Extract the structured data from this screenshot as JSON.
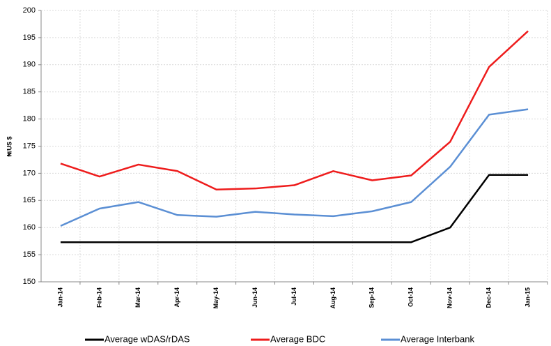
{
  "chart_data": {
    "type": "line",
    "y_label": "₦/US $",
    "categories": [
      "Jan-14",
      "Feb-14",
      "Mar-14",
      "Apr-14",
      "May-14",
      "Jun-14",
      "Jul-14",
      "Aug-14",
      "Sep-14",
      "Oct-14",
      "Nov-14",
      "Dec-14",
      "Jan-15"
    ],
    "series": [
      {
        "name": "Average wDAS/rDAS",
        "color": "#000000",
        "values": [
          157.3,
          157.3,
          157.3,
          157.3,
          157.3,
          157.3,
          157.3,
          157.3,
          157.3,
          157.3,
          160.0,
          169.7,
          169.7
        ]
      },
      {
        "name": "Average BDC",
        "color": "#ee1c1c",
        "values": [
          171.8,
          169.4,
          171.6,
          170.4,
          167.0,
          167.2,
          167.8,
          170.4,
          168.7,
          169.6,
          175.8,
          189.6,
          196.2
        ]
      },
      {
        "name": "Average Interbank",
        "color": "#5b8fd4",
        "values": [
          160.3,
          163.5,
          164.7,
          162.3,
          162.0,
          162.9,
          162.4,
          162.1,
          163.0,
          164.7,
          171.2,
          180.8,
          181.8
        ]
      }
    ],
    "ylim": [
      150,
      200
    ],
    "yticks": [
      150,
      155,
      160,
      165,
      170,
      175,
      180,
      185,
      190,
      195,
      200
    ],
    "grid": true,
    "legend": "bottom"
  }
}
